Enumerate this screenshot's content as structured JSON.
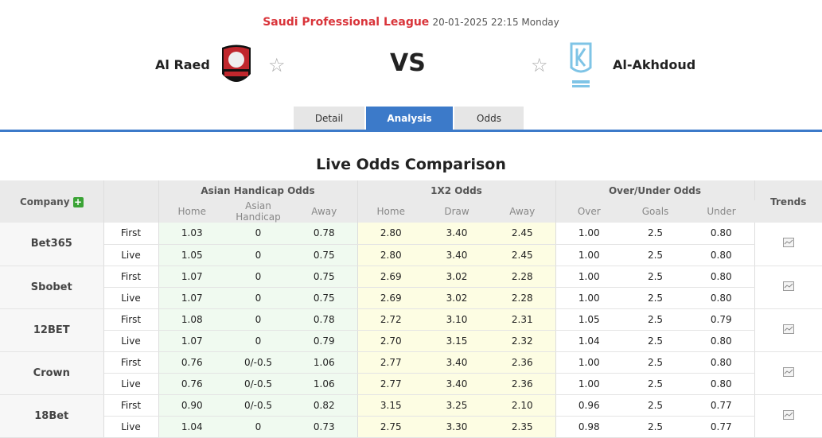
{
  "header": {
    "league": "Saudi Professional League",
    "datetime": "20-01-2025 22:15 Monday",
    "home": "Al Raed",
    "away": "Al-Akhdoud",
    "vs": "VS",
    "star": "☆"
  },
  "tabs": [
    {
      "label": "Detail"
    },
    {
      "label": "Analysis",
      "active": true
    },
    {
      "label": "Odds"
    }
  ],
  "title": "Live Odds Comparison",
  "table": {
    "company_header": "Company",
    "plus": "+",
    "trends_header": "Trends",
    "groups": [
      "Asian Handicap Odds",
      "1X2 Odds",
      "Over/Under Odds"
    ],
    "subheaders": [
      "Home",
      "Asian Handicap",
      "Away",
      "Home",
      "Draw",
      "Away",
      "Over",
      "Goals",
      "Under"
    ],
    "companies": [
      {
        "name": "Bet365",
        "rows": [
          [
            "First",
            "1.03",
            "0",
            "0.78",
            "2.80",
            "3.40",
            "2.45",
            "1.00",
            "2.5",
            "0.80"
          ],
          [
            "Live",
            "1.05",
            "0",
            "0.75",
            "2.80",
            "3.40",
            "2.45",
            "1.00",
            "2.5",
            "0.80"
          ]
        ]
      },
      {
        "name": "Sbobet",
        "rows": [
          [
            "First",
            "1.07",
            "0",
            "0.75",
            "2.69",
            "3.02",
            "2.28",
            "1.00",
            "2.5",
            "0.80"
          ],
          [
            "Live",
            "1.07",
            "0",
            "0.75",
            "2.69",
            "3.02",
            "2.28",
            "1.00",
            "2.5",
            "0.80"
          ]
        ]
      },
      {
        "name": "12BET",
        "rows": [
          [
            "First",
            "1.08",
            "0",
            "0.78",
            "2.72",
            "3.10",
            "2.31",
            "1.05",
            "2.5",
            "0.79"
          ],
          [
            "Live",
            "1.07",
            "0",
            "0.79",
            "2.70",
            "3.15",
            "2.32",
            "1.04",
            "2.5",
            "0.80"
          ]
        ]
      },
      {
        "name": "Crown",
        "rows": [
          [
            "First",
            "0.76",
            "0/-0.5",
            "1.06",
            "2.77",
            "3.40",
            "2.36",
            "1.00",
            "2.5",
            "0.80"
          ],
          [
            "Live",
            "0.76",
            "0/-0.5",
            "1.06",
            "2.77",
            "3.40",
            "2.36",
            "1.00",
            "2.5",
            "0.80"
          ]
        ]
      },
      {
        "name": "18Bet",
        "rows": [
          [
            "First",
            "0.90",
            "0/-0.5",
            "0.82",
            "3.15",
            "3.25",
            "2.10",
            "0.96",
            "2.5",
            "0.77"
          ],
          [
            "Live",
            "1.04",
            "0",
            "0.73",
            "2.75",
            "3.30",
            "2.35",
            "0.98",
            "2.5",
            "0.77"
          ]
        ]
      }
    ]
  }
}
